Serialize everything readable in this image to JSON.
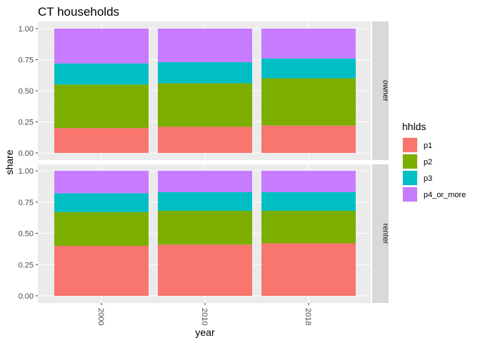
{
  "chart_data": {
    "type": "bar",
    "stacked": true,
    "title": "CT households",
    "xlabel": "year",
    "ylabel": "share",
    "ylim": [
      0,
      1
    ],
    "yticks": [
      "0.00",
      "0.25",
      "0.50",
      "0.75",
      "1.00"
    ],
    "categories": [
      "2000",
      "2010",
      "2018"
    ],
    "legend": {
      "title": "hhlds",
      "position": "right",
      "entries": [
        "p1",
        "p2",
        "p3",
        "p4_or_more"
      ],
      "colors": [
        "#F8766D",
        "#7CAE00",
        "#00BFC4",
        "#C77CFF"
      ]
    },
    "facets": [
      {
        "label": "owner",
        "series": [
          {
            "name": "p1",
            "values": [
              0.2,
              0.21,
              0.22
            ]
          },
          {
            "name": "p2",
            "values": [
              0.35,
              0.35,
              0.38
            ]
          },
          {
            "name": "p3",
            "values": [
              0.17,
              0.17,
              0.16
            ]
          },
          {
            "name": "p4_or_more",
            "values": [
              0.28,
              0.27,
              0.24
            ]
          }
        ]
      },
      {
        "label": "renter",
        "series": [
          {
            "name": "p1",
            "values": [
              0.4,
              0.41,
              0.42
            ]
          },
          {
            "name": "p2",
            "values": [
              0.27,
              0.27,
              0.26
            ]
          },
          {
            "name": "p3",
            "values": [
              0.15,
              0.15,
              0.15
            ]
          },
          {
            "name": "p4_or_more",
            "values": [
              0.18,
              0.17,
              0.17
            ]
          }
        ]
      }
    ],
    "grid": true
  }
}
